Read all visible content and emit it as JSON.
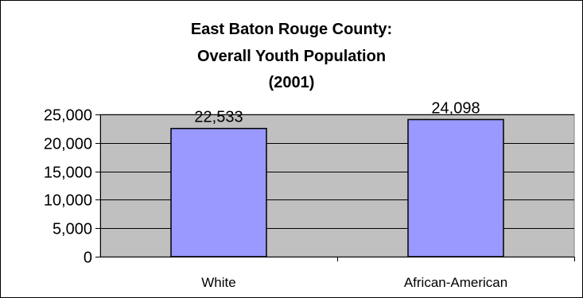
{
  "chart_data": {
    "type": "bar",
    "title_lines": [
      "East Baton Rouge County:",
      "Overall Youth Population",
      "(2001)"
    ],
    "categories": [
      "White",
      "African-American"
    ],
    "values": [
      22533,
      24098
    ],
    "value_labels": [
      "22,533",
      "24,098"
    ],
    "ylim": [
      0,
      25000
    ],
    "yticks": [
      0,
      5000,
      10000,
      15000,
      20000,
      25000
    ],
    "ytick_labels": [
      "0",
      "5,000",
      "10,000",
      "15,000",
      "20,000",
      "25,000"
    ],
    "grid": true,
    "legend": "none",
    "colors": {
      "plot_background": "#c0c0c0",
      "bar_fill": "#9999ff",
      "bar_stroke": "#000000",
      "gridline": "#000000"
    }
  }
}
